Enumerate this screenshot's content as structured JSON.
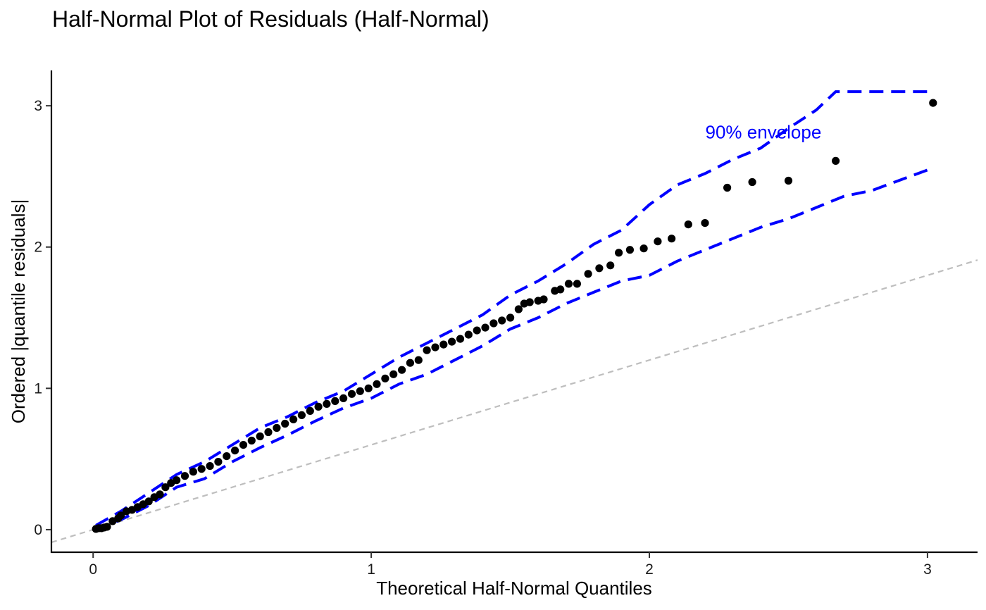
{
  "chart_data": {
    "type": "scatter",
    "title": "Half-Normal Plot of Residuals (Half-Normal)",
    "xlabel": "Theoretical Half-Normal Quantiles",
    "ylabel": "Ordered |quantile residuals|",
    "xlim": [
      -0.15,
      3.18
    ],
    "ylim": [
      -0.16,
      3.25
    ],
    "x_ticks": [
      0,
      1,
      2,
      3
    ],
    "y_ticks": [
      0,
      1,
      2,
      3
    ],
    "grid": false,
    "legend": "none",
    "colors": {
      "points": "#000000",
      "envelope": "#0000ff",
      "reference": "#bebebe"
    },
    "reference_line": {
      "slope": 0.6,
      "intercept": 0,
      "style": "dashed"
    },
    "annotation": {
      "text": "90% envelope",
      "x": 2.41,
      "y": 2.77,
      "color": "#0000ff"
    },
    "points": [
      [
        0.01,
        0.005
      ],
      [
        0.02,
        0.01
      ],
      [
        0.03,
        0.01
      ],
      [
        0.04,
        0.015
      ],
      [
        0.05,
        0.02
      ],
      [
        0.07,
        0.06
      ],
      [
        0.09,
        0.08
      ],
      [
        0.1,
        0.1
      ],
      [
        0.12,
        0.13
      ],
      [
        0.14,
        0.14
      ],
      [
        0.16,
        0.16
      ],
      [
        0.18,
        0.18
      ],
      [
        0.2,
        0.2
      ],
      [
        0.22,
        0.23
      ],
      [
        0.24,
        0.25
      ],
      [
        0.26,
        0.3
      ],
      [
        0.28,
        0.33
      ],
      [
        0.3,
        0.35
      ],
      [
        0.33,
        0.38
      ],
      [
        0.36,
        0.41
      ],
      [
        0.39,
        0.43
      ],
      [
        0.42,
        0.45
      ],
      [
        0.45,
        0.48
      ],
      [
        0.48,
        0.52
      ],
      [
        0.51,
        0.56
      ],
      [
        0.54,
        0.6
      ],
      [
        0.57,
        0.63
      ],
      [
        0.6,
        0.66
      ],
      [
        0.63,
        0.69
      ],
      [
        0.66,
        0.72
      ],
      [
        0.69,
        0.75
      ],
      [
        0.72,
        0.78
      ],
      [
        0.75,
        0.81
      ],
      [
        0.78,
        0.84
      ],
      [
        0.81,
        0.87
      ],
      [
        0.84,
        0.89
      ],
      [
        0.87,
        0.91
      ],
      [
        0.9,
        0.93
      ],
      [
        0.93,
        0.96
      ],
      [
        0.96,
        0.98
      ],
      [
        0.99,
        1.0
      ],
      [
        1.02,
        1.03
      ],
      [
        1.05,
        1.07
      ],
      [
        1.08,
        1.1
      ],
      [
        1.11,
        1.13
      ],
      [
        1.14,
        1.18
      ],
      [
        1.17,
        1.2
      ],
      [
        1.2,
        1.27
      ],
      [
        1.23,
        1.29
      ],
      [
        1.26,
        1.31
      ],
      [
        1.29,
        1.33
      ],
      [
        1.32,
        1.35
      ],
      [
        1.35,
        1.38
      ],
      [
        1.38,
        1.41
      ],
      [
        1.41,
        1.43
      ],
      [
        1.44,
        1.46
      ],
      [
        1.47,
        1.48
      ],
      [
        1.5,
        1.5
      ],
      [
        1.53,
        1.56
      ],
      [
        1.55,
        1.6
      ],
      [
        1.57,
        1.61
      ],
      [
        1.6,
        1.62
      ],
      [
        1.62,
        1.63
      ],
      [
        1.66,
        1.69
      ],
      [
        1.68,
        1.7
      ],
      [
        1.71,
        1.74
      ],
      [
        1.74,
        1.74
      ],
      [
        1.78,
        1.81
      ],
      [
        1.82,
        1.85
      ],
      [
        1.86,
        1.87
      ],
      [
        1.89,
        1.96
      ],
      [
        1.93,
        1.98
      ],
      [
        1.98,
        1.99
      ],
      [
        2.03,
        2.04
      ],
      [
        2.08,
        2.06
      ],
      [
        2.14,
        2.16
      ],
      [
        2.2,
        2.17
      ],
      [
        2.28,
        2.42
      ],
      [
        2.37,
        2.46
      ],
      [
        2.5,
        2.47
      ],
      [
        2.67,
        2.61
      ],
      [
        3.02,
        3.02
      ]
    ],
    "envelope_upper": [
      [
        0.01,
        0.03
      ],
      [
        0.1,
        0.13
      ],
      [
        0.2,
        0.26
      ],
      [
        0.3,
        0.39
      ],
      [
        0.4,
        0.48
      ],
      [
        0.5,
        0.6
      ],
      [
        0.6,
        0.72
      ],
      [
        0.7,
        0.8
      ],
      [
        0.8,
        0.9
      ],
      [
        0.9,
        0.98
      ],
      [
        1.0,
        1.1
      ],
      [
        1.1,
        1.22
      ],
      [
        1.2,
        1.32
      ],
      [
        1.3,
        1.42
      ],
      [
        1.4,
        1.52
      ],
      [
        1.5,
        1.66
      ],
      [
        1.6,
        1.76
      ],
      [
        1.7,
        1.88
      ],
      [
        1.8,
        2.02
      ],
      [
        1.9,
        2.12
      ],
      [
        2.0,
        2.3
      ],
      [
        2.1,
        2.44
      ],
      [
        2.2,
        2.52
      ],
      [
        2.3,
        2.62
      ],
      [
        2.4,
        2.7
      ],
      [
        2.5,
        2.84
      ],
      [
        2.6,
        2.97
      ],
      [
        2.67,
        3.1
      ],
      [
        3.02,
        3.1
      ]
    ],
    "envelope_lower": [
      [
        0.01,
        0.0
      ],
      [
        0.1,
        0.07
      ],
      [
        0.2,
        0.17
      ],
      [
        0.3,
        0.3
      ],
      [
        0.4,
        0.36
      ],
      [
        0.5,
        0.48
      ],
      [
        0.6,
        0.58
      ],
      [
        0.7,
        0.67
      ],
      [
        0.8,
        0.77
      ],
      [
        0.9,
        0.86
      ],
      [
        1.0,
        0.93
      ],
      [
        1.1,
        1.03
      ],
      [
        1.2,
        1.1
      ],
      [
        1.3,
        1.2
      ],
      [
        1.4,
        1.3
      ],
      [
        1.5,
        1.42
      ],
      [
        1.6,
        1.5
      ],
      [
        1.7,
        1.6
      ],
      [
        1.8,
        1.68
      ],
      [
        1.9,
        1.76
      ],
      [
        2.0,
        1.8
      ],
      [
        2.1,
        1.9
      ],
      [
        2.2,
        1.98
      ],
      [
        2.3,
        2.06
      ],
      [
        2.4,
        2.14
      ],
      [
        2.5,
        2.2
      ],
      [
        2.6,
        2.28
      ],
      [
        2.7,
        2.36
      ],
      [
        2.8,
        2.4
      ],
      [
        3.02,
        2.56
      ]
    ]
  }
}
